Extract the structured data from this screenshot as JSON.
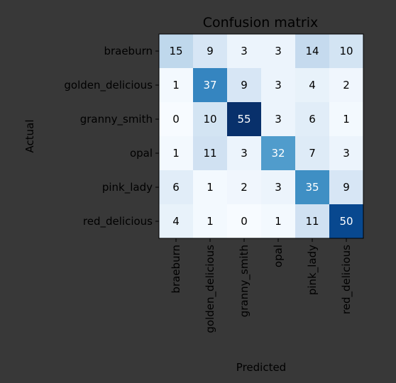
{
  "chart_data": {
    "type": "heatmap",
    "title": "Confusion matrix",
    "xlabel": "Predicted",
    "ylabel": "Actual",
    "x_categories": [
      "braeburn",
      "golden_delicious",
      "granny_smith",
      "opal",
      "pink_lady",
      "red_delicious"
    ],
    "y_categories": [
      "braeburn",
      "golden_delicious",
      "granny_smith",
      "opal",
      "pink_lady",
      "red_delicious"
    ],
    "values": [
      [
        15,
        9,
        3,
        3,
        14,
        10
      ],
      [
        1,
        37,
        9,
        3,
        4,
        2
      ],
      [
        0,
        10,
        55,
        3,
        6,
        1
      ],
      [
        1,
        11,
        3,
        32,
        7,
        3
      ],
      [
        6,
        1,
        2,
        3,
        35,
        9
      ],
      [
        4,
        1,
        0,
        1,
        11,
        50
      ]
    ],
    "vmin": 0,
    "vmax": 55,
    "colormap": "Blues",
    "grid": false
  }
}
